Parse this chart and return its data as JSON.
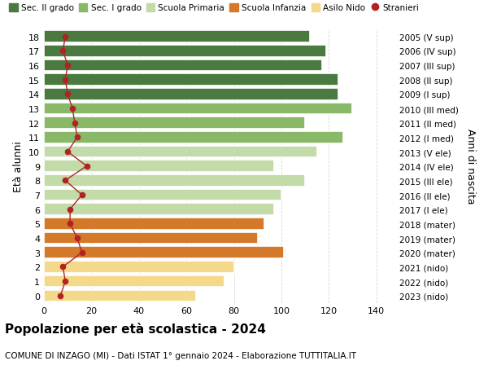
{
  "ages": [
    18,
    17,
    16,
    15,
    14,
    13,
    12,
    11,
    10,
    9,
    8,
    7,
    6,
    5,
    4,
    3,
    2,
    1,
    0
  ],
  "birth_years": [
    "2005 (V sup)",
    "2006 (IV sup)",
    "2007 (III sup)",
    "2008 (II sup)",
    "2009 (I sup)",
    "2010 (III med)",
    "2011 (II med)",
    "2012 (I med)",
    "2013 (V ele)",
    "2014 (IV ele)",
    "2015 (III ele)",
    "2016 (II ele)",
    "2017 (I ele)",
    "2018 (mater)",
    "2019 (mater)",
    "2020 (mater)",
    "2021 (nido)",
    "2022 (nido)",
    "2023 (nido)"
  ],
  "bar_values": [
    112,
    119,
    117,
    124,
    124,
    130,
    110,
    126,
    115,
    97,
    110,
    100,
    97,
    93,
    90,
    101,
    80,
    76,
    64
  ],
  "stranieri_values": [
    9,
    8,
    10,
    9,
    10,
    12,
    13,
    14,
    10,
    18,
    9,
    16,
    11,
    11,
    14,
    16,
    8,
    9,
    7
  ],
  "bar_colors": [
    "#4a7a40",
    "#4a7a40",
    "#4a7a40",
    "#4a7a40",
    "#4a7a40",
    "#88b868",
    "#88b868",
    "#88b868",
    "#c2dba8",
    "#c2dba8",
    "#c2dba8",
    "#c2dba8",
    "#c2dba8",
    "#d4782a",
    "#d4782a",
    "#d4782a",
    "#f5d98a",
    "#f5d98a",
    "#f5d98a"
  ],
  "legend_labels": [
    "Sec. II grado",
    "Sec. I grado",
    "Scuola Primaria",
    "Scuola Infanzia",
    "Asilo Nido",
    "Stranieri"
  ],
  "legend_colors": [
    "#4a7a40",
    "#88b868",
    "#c2dba8",
    "#d4782a",
    "#f5d98a",
    "#c0392b"
  ],
  "stranieri_color": "#b22222",
  "xlabel_values": [
    0,
    20,
    40,
    60,
    80,
    100,
    120,
    140
  ],
  "xlim": [
    0,
    148
  ],
  "ylim": [
    -0.5,
    18.5
  ],
  "title": "Popolazione per età scolastica - 2024",
  "subtitle": "COMUNE DI INZAGO (MI) - Dati ISTAT 1° gennaio 2024 - Elaborazione TUTTITALIA.IT",
  "ylabel_left": "Età alunni",
  "ylabel_right": "Anni di nascita",
  "background_color": "#ffffff",
  "grid_color": "#cccccc",
  "bar_height": 0.82,
  "bar_edgecolor": "#ffffff",
  "bar_linewidth": 1.2
}
